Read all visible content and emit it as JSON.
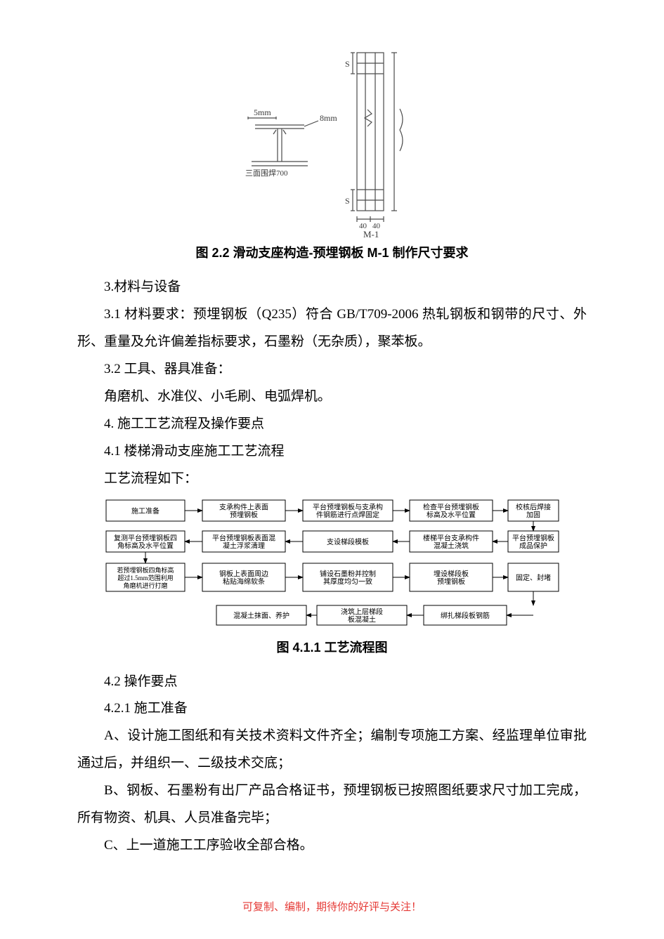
{
  "figure22": {
    "caption": "图 2.2 滑动支座构造-预埋钢板 M-1 制作尺寸要求",
    "left_labels": {
      "top": "5mm",
      "right_note": "8mm",
      "bottom": "三面围焊700"
    },
    "right_labels": {
      "topS": "S",
      "botS": "S",
      "bottom_tag": "M-1",
      "dim1": "40",
      "dim2": "40"
    },
    "line_color": "#4a4a4a"
  },
  "text": {
    "s3": "3.材料与设备",
    "s31": "3.1 材料要求：预埋钢板（Q235）符合 GB/T709-2006 热轧钢板和钢带的尺寸、外形、重量及允许偏差指标要求，石墨粉（无杂质），聚苯板。",
    "s32": "3.2 工具、器具准备：",
    "s32b": "角磨机、水准仪、小毛刷、电弧焊机。",
    "s4": "4. 施工工艺流程及操作要点",
    "s41": "4.1 楼梯滑动支座施工工艺流程",
    "s41b": "工艺流程如下：",
    "fig411_caption": "图 4.1.1 工艺流程图",
    "s42": "4.2 操作要点",
    "s421": "4.2.1 施工准备",
    "pA": "A、设计施工图纸和有关技术资料文件齐全；编制专项施工方案、经监理单位审批通过后，并组织一、二级技术交底；",
    "pB": "B、钢板、石墨粉有出厂产品合格证书，预埋钢板已按照图纸要求尺寸加工完成，所有物资、机具、人员准备完毕；",
    "pC": "C、上一道施工工序验收全部合格。"
  },
  "flow": {
    "border": "#000000",
    "bg": "#ffffff",
    "arrow": "#000000",
    "r1": [
      "施工准备",
      [
        "支承构件上表面",
        "预埋钢板"
      ],
      [
        "平台预埋钢板与支承构",
        "件钢筋进行点焊固定"
      ],
      [
        "检查平台预埋钢板",
        "标高及水平位置"
      ],
      [
        "校核后焊接",
        "加固"
      ]
    ],
    "r2": [
      [
        "复测平台预埋钢板四",
        "角标高及水平位置"
      ],
      [
        "平台预埋钢板表面混",
        "凝土浮浆清理"
      ],
      "支设梯段模板",
      [
        "楼梯平台支承构件",
        "混凝土浇筑"
      ],
      [
        "平台预埋钢板",
        "成品保护"
      ]
    ],
    "r3": [
      [
        "若预埋钢板四角标高",
        "超过1.5mm范围利用",
        "角磨机进行打磨"
      ],
      [
        "钢板上表面周边",
        "粘贴海绵软条"
      ],
      [
        "铺设石墨粉并控制",
        "其厚度均匀一致"
      ],
      [
        "埋设梯段板",
        "预埋钢板"
      ],
      "固定、封堵"
    ],
    "r4": [
      "混凝土抹面、养护",
      [
        "浇筑上层梯段",
        "板混凝土"
      ],
      "绑扎梯段板钢筋"
    ]
  },
  "footer": "可复制、编制，期待你的好评与关注！"
}
